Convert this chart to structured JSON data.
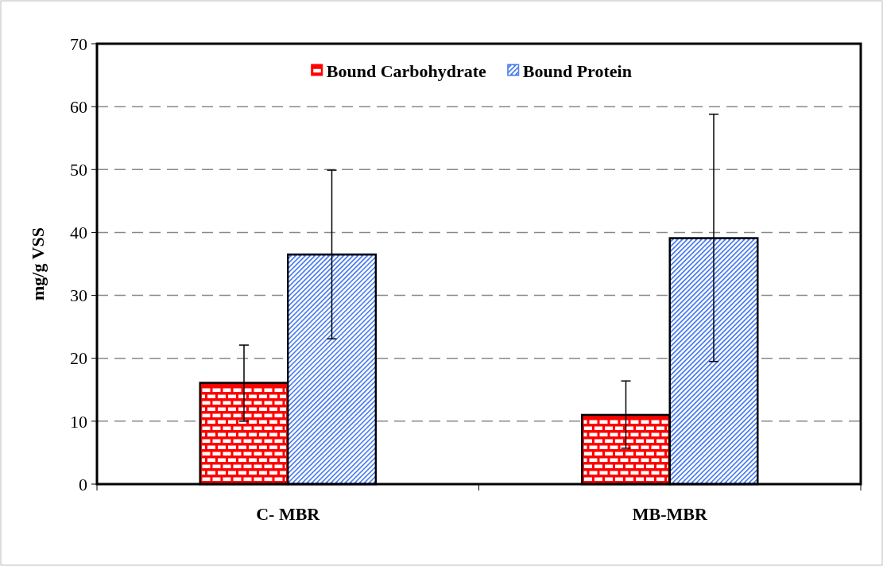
{
  "chart_data": {
    "type": "bar",
    "ylabel": "mg/g VSS",
    "categories": [
      "C- MBR",
      "MB-MBR"
    ],
    "series": [
      {
        "name": "Bound Carbohydrate",
        "color": "#ff0000",
        "values": [
          16.1,
          11.0
        ],
        "errors": [
          [
            10.0,
            22.1
          ],
          [
            5.7,
            16.4
          ]
        ]
      },
      {
        "name": "Bound Protein",
        "color": "#4a7cf0",
        "values": [
          36.5,
          39.1
        ],
        "errors": [
          [
            23.1,
            49.9
          ],
          [
            19.5,
            58.8
          ]
        ]
      }
    ],
    "ylim": [
      0,
      70
    ],
    "yticks": [
      0,
      10,
      20,
      30,
      40,
      50,
      60,
      70
    ],
    "grid": "y",
    "legend": "top"
  }
}
